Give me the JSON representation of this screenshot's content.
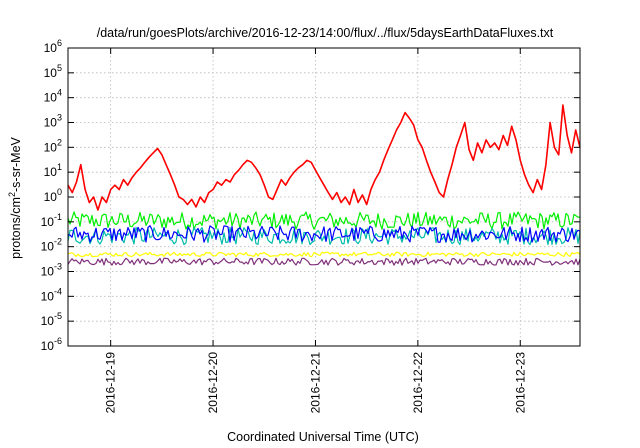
{
  "chart_data": {
    "type": "line",
    "title": "/data/run/goesPlots/archive/2016-12-23/14:00/flux/../flux/5daysEarthDataFluxes.txt",
    "xlabel": "Coordinated Universal Time (UTC)",
    "ylabel": {
      "base": "protons/cm",
      "sup": "2",
      "rest": "-s-sr-MeV"
    },
    "x_is_date": true,
    "xlim": [
      "2016-12-18T14:00",
      "2016-12-23T14:00"
    ],
    "x_ticks": [
      "2016-12-19",
      "2016-12-20",
      "2016-12-21",
      "2016-12-22",
      "2016-12-23"
    ],
    "y_scale": "log",
    "ylim": [
      1e-06,
      1000000.0
    ],
    "y_ticks": [
      {
        "value": 1e-06,
        "base": "10",
        "exp": "-6"
      },
      {
        "value": 1e-05,
        "base": "10",
        "exp": "-5"
      },
      {
        "value": 0.0001,
        "base": "10",
        "exp": "-4"
      },
      {
        "value": 0.001,
        "base": "10",
        "exp": "-3"
      },
      {
        "value": 0.01,
        "base": "10",
        "exp": "-2"
      },
      {
        "value": 0.1,
        "base": "10",
        "exp": "-1"
      },
      {
        "value": 1,
        "base": "10",
        "exp": "0"
      },
      {
        "value": 10,
        "base": "10",
        "exp": "1"
      },
      {
        "value": 100,
        "base": "10",
        "exp": "2"
      },
      {
        "value": 1000,
        "base": "10",
        "exp": "3"
      },
      {
        "value": 10000,
        "base": "10",
        "exp": "4"
      },
      {
        "value": 100000,
        "base": "10",
        "exp": "5"
      },
      {
        "value": 1000000,
        "base": "10",
        "exp": "6"
      }
    ],
    "grid": true,
    "legend": "none",
    "series": [
      {
        "color": "#ff0000",
        "points": [
          [
            "2016-12-18T14:00",
            3
          ],
          [
            "2016-12-18T15:00",
            1.5
          ],
          [
            "2016-12-18T16:00",
            4
          ],
          [
            "2016-12-18T17:00",
            20
          ],
          [
            "2016-12-18T18:00",
            2
          ],
          [
            "2016-12-18T19:00",
            0.6
          ],
          [
            "2016-12-18T20:00",
            1
          ],
          [
            "2016-12-18T21:00",
            0.3
          ],
          [
            "2016-12-18T22:00",
            1
          ],
          [
            "2016-12-18T23:00",
            0.6
          ],
          [
            "2016-12-19T00:00",
            2
          ],
          [
            "2016-12-19T01:00",
            3
          ],
          [
            "2016-12-19T02:00",
            2
          ],
          [
            "2016-12-19T03:00",
            5
          ],
          [
            "2016-12-19T04:00",
            3
          ],
          [
            "2016-12-19T05:00",
            6
          ],
          [
            "2016-12-19T06:00",
            10
          ],
          [
            "2016-12-19T07:00",
            15
          ],
          [
            "2016-12-19T08:00",
            25
          ],
          [
            "2016-12-19T09:00",
            40
          ],
          [
            "2016-12-19T10:00",
            60
          ],
          [
            "2016-12-19T11:00",
            90
          ],
          [
            "2016-12-19T12:00",
            50
          ],
          [
            "2016-12-19T13:00",
            20
          ],
          [
            "2016-12-19T14:00",
            8
          ],
          [
            "2016-12-19T15:00",
            3
          ],
          [
            "2016-12-19T16:00",
            1
          ],
          [
            "2016-12-19T17:00",
            0.8
          ],
          [
            "2016-12-19T18:00",
            0.5
          ],
          [
            "2016-12-19T19:00",
            0.8
          ],
          [
            "2016-12-19T20:00",
            0.4
          ],
          [
            "2016-12-19T21:00",
            1
          ],
          [
            "2016-12-19T22:00",
            0.6
          ],
          [
            "2016-12-19T23:00",
            1.5
          ],
          [
            "2016-12-20T00:00",
            2
          ],
          [
            "2016-12-20T01:00",
            4
          ],
          [
            "2016-12-20T02:00",
            3
          ],
          [
            "2016-12-20T03:00",
            5
          ],
          [
            "2016-12-20T04:00",
            4
          ],
          [
            "2016-12-20T05:00",
            8
          ],
          [
            "2016-12-20T06:00",
            12
          ],
          [
            "2016-12-20T07:00",
            20
          ],
          [
            "2016-12-20T08:00",
            30
          ],
          [
            "2016-12-20T09:00",
            25
          ],
          [
            "2016-12-20T10:00",
            15
          ],
          [
            "2016-12-20T11:00",
            8
          ],
          [
            "2016-12-20T12:00",
            3
          ],
          [
            "2016-12-20T13:00",
            1
          ],
          [
            "2016-12-20T14:00",
            0.8
          ],
          [
            "2016-12-20T15:00",
            2
          ],
          [
            "2016-12-20T16:00",
            5
          ],
          [
            "2016-12-20T17:00",
            3
          ],
          [
            "2016-12-20T18:00",
            6
          ],
          [
            "2016-12-20T19:00",
            10
          ],
          [
            "2016-12-20T20:00",
            15
          ],
          [
            "2016-12-20T21:00",
            20
          ],
          [
            "2016-12-20T22:00",
            30
          ],
          [
            "2016-12-20T23:00",
            25
          ],
          [
            "2016-12-21T00:00",
            12
          ],
          [
            "2016-12-21T01:00",
            6
          ],
          [
            "2016-12-21T02:00",
            3
          ],
          [
            "2016-12-21T03:00",
            1.5
          ],
          [
            "2016-12-21T04:00",
            0.8
          ],
          [
            "2016-12-21T05:00",
            1.5
          ],
          [
            "2016-12-21T06:00",
            0.6
          ],
          [
            "2016-12-21T07:00",
            1
          ],
          [
            "2016-12-21T08:00",
            0.5
          ],
          [
            "2016-12-21T09:00",
            2
          ],
          [
            "2016-12-21T10:00",
            0.6
          ],
          [
            "2016-12-21T11:00",
            1.2
          ],
          [
            "2016-12-21T12:00",
            0.5
          ],
          [
            "2016-12-21T13:00",
            2
          ],
          [
            "2016-12-21T14:00",
            5
          ],
          [
            "2016-12-21T15:00",
            10
          ],
          [
            "2016-12-21T16:00",
            30
          ],
          [
            "2016-12-21T17:00",
            80
          ],
          [
            "2016-12-21T18:00",
            200
          ],
          [
            "2016-12-21T19:00",
            500
          ],
          [
            "2016-12-21T20:00",
            1000
          ],
          [
            "2016-12-21T21:00",
            2500
          ],
          [
            "2016-12-21T22:00",
            1500
          ],
          [
            "2016-12-21T23:00",
            800
          ],
          [
            "2016-12-22T00:00",
            200
          ],
          [
            "2016-12-22T01:00",
            100
          ],
          [
            "2016-12-22T02:00",
            30
          ],
          [
            "2016-12-22T03:00",
            10
          ],
          [
            "2016-12-22T04:00",
            4
          ],
          [
            "2016-12-22T05:00",
            1.5
          ],
          [
            "2016-12-22T06:00",
            1
          ],
          [
            "2016-12-22T07:00",
            5
          ],
          [
            "2016-12-22T08:00",
            20
          ],
          [
            "2016-12-22T09:00",
            100
          ],
          [
            "2016-12-22T10:00",
            300
          ],
          [
            "2016-12-22T11:00",
            1000
          ],
          [
            "2016-12-22T12:00",
            80
          ],
          [
            "2016-12-22T13:00",
            30
          ],
          [
            "2016-12-22T14:00",
            150
          ],
          [
            "2016-12-22T15:00",
            60
          ],
          [
            "2016-12-22T16:00",
            200
          ],
          [
            "2016-12-22T17:00",
            100
          ],
          [
            "2016-12-22T18:00",
            150
          ],
          [
            "2016-12-22T19:00",
            80
          ],
          [
            "2016-12-22T20:00",
            300
          ],
          [
            "2016-12-22T21:00",
            120
          ],
          [
            "2016-12-22T22:00",
            700
          ],
          [
            "2016-12-22T23:00",
            200
          ],
          [
            "2016-12-23T00:00",
            30
          ],
          [
            "2016-12-23T01:00",
            8
          ],
          [
            "2016-12-23T02:00",
            3
          ],
          [
            "2016-12-23T03:00",
            1.5
          ],
          [
            "2016-12-23T04:00",
            5
          ],
          [
            "2016-12-23T05:00",
            2
          ],
          [
            "2016-12-23T06:00",
            20
          ],
          [
            "2016-12-23T07:00",
            1000
          ],
          [
            "2016-12-23T08:00",
            100
          ],
          [
            "2016-12-23T09:00",
            50
          ],
          [
            "2016-12-23T10:00",
            5000
          ],
          [
            "2016-12-23T11:00",
            300
          ],
          [
            "2016-12-23T12:00",
            60
          ],
          [
            "2016-12-23T13:00",
            500
          ],
          [
            "2016-12-23T14:00",
            100
          ]
        ]
      },
      {
        "color": "#00ee00",
        "points": [
          [
            "2016-12-18T14:00",
            0.12
          ],
          [
            "2016-12-19T14:00",
            0.12
          ],
          [
            "2016-12-20T14:00",
            0.12
          ],
          [
            "2016-12-21T14:00",
            0.12
          ],
          [
            "2016-12-22T14:00",
            0.12
          ],
          [
            "2016-12-23T14:00",
            0.12
          ]
        ],
        "band": [
          0.05,
          0.25
        ]
      },
      {
        "color": "#00bbaa",
        "points": [
          [
            "2016-12-18T14:00",
            0.035
          ],
          [
            "2016-12-19T14:00",
            0.035
          ],
          [
            "2016-12-20T14:00",
            0.035
          ],
          [
            "2016-12-21T14:00",
            0.035
          ],
          [
            "2016-12-22T14:00",
            0.035
          ],
          [
            "2016-12-23T14:00",
            0.035
          ]
        ],
        "band": [
          0.012,
          0.06
        ]
      },
      {
        "color": "#0000ff",
        "points": [
          [
            "2016-12-18T14:00",
            0.03
          ],
          [
            "2016-12-19T14:00",
            0.03
          ],
          [
            "2016-12-20T14:00",
            0.03
          ],
          [
            "2016-12-21T14:00",
            0.03
          ],
          [
            "2016-12-22T14:00",
            0.03
          ],
          [
            "2016-12-23T14:00",
            0.03
          ]
        ],
        "band": [
          0.015,
          0.07
        ]
      },
      {
        "color": "#ffff00",
        "points": [
          [
            "2016-12-18T14:00",
            0.005
          ],
          [
            "2016-12-19T14:00",
            0.005
          ],
          [
            "2016-12-20T14:00",
            0.005
          ],
          [
            "2016-12-21T14:00",
            0.005
          ],
          [
            "2016-12-22T14:00",
            0.005
          ],
          [
            "2016-12-23T14:00",
            0.005
          ]
        ],
        "band": [
          0.004,
          0.006
        ]
      },
      {
        "color": "#80307a",
        "points": [
          [
            "2016-12-18T14:00",
            0.0025
          ],
          [
            "2016-12-19T14:00",
            0.0025
          ],
          [
            "2016-12-20T14:00",
            0.0025
          ],
          [
            "2016-12-21T14:00",
            0.0025
          ],
          [
            "2016-12-22T14:00",
            0.0025
          ],
          [
            "2016-12-23T14:00",
            0.0025
          ]
        ],
        "band": [
          0.0018,
          0.0035
        ]
      }
    ]
  }
}
